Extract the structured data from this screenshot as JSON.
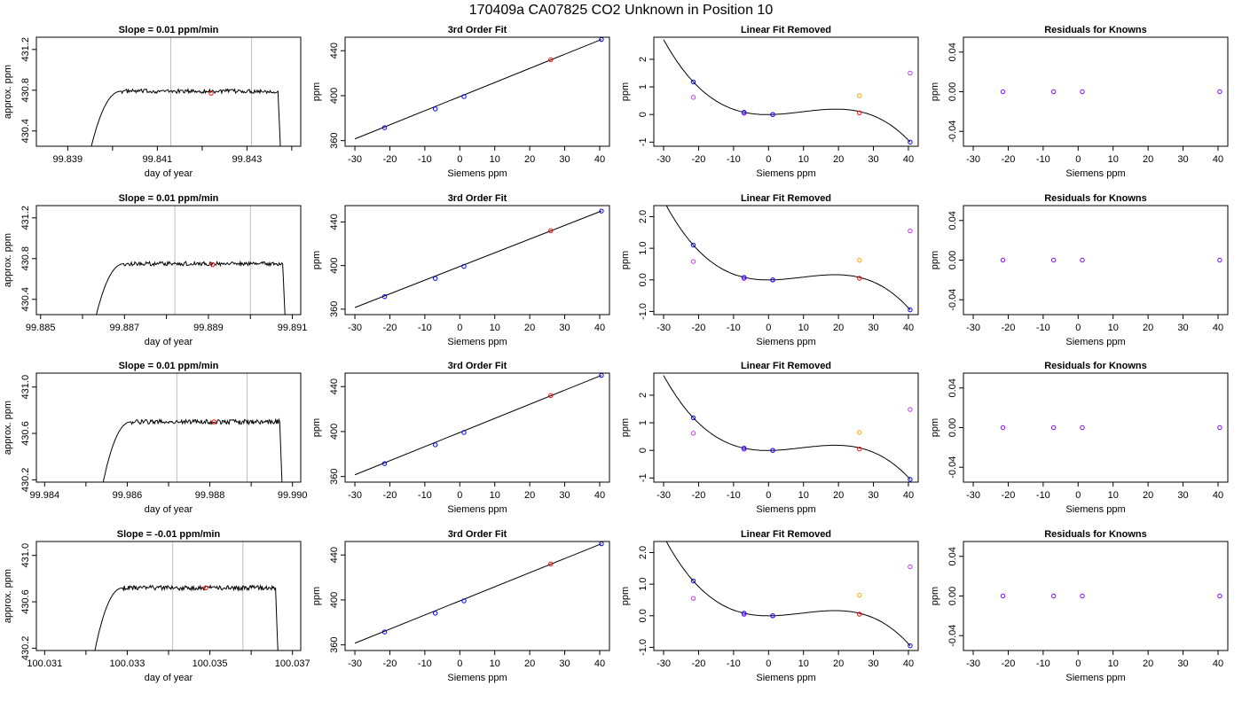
{
  "figure": {
    "title": "170409a      CA07825    CO2 Unknown in Position  10"
  },
  "colors": {
    "raw_trace": "#000000",
    "window_lines": "#bebebe",
    "known_points": "#0000ff",
    "unknown_point": "#ff0000",
    "linear_removed_alt1": "#cc33ff",
    "linear_removed_alt2": "#ffa500",
    "residual_points": "#7f00ff"
  },
  "chart_data": [
    {
      "type": "line",
      "row": 1,
      "col": 1,
      "title": "Slope =  0.01  ppm/min",
      "xlabel": "day of year",
      "ylabel": "approx. ppm",
      "xlim": [
        99.8383,
        99.8442
      ],
      "ylim": [
        430.25,
        431.32
      ],
      "x_ticks": [
        "99.839",
        "99.841",
        "99.843"
      ],
      "x_tick_values": [
        99.839,
        99.841,
        99.843
      ],
      "y_ticks": [
        "430.4",
        "430.8",
        "431.2"
      ],
      "y_tick_values": [
        430.4,
        430.8,
        431.2
      ],
      "window_lines": [
        99.8413,
        99.8431
      ],
      "trace": {
        "start": 99.8395,
        "rise_end": 99.8402,
        "end": 99.84375,
        "low": 430.2,
        "plateau": 430.79,
        "noise": 0.02
      },
      "unknown_mean": {
        "x": 99.8422,
        "y": 430.77
      }
    },
    {
      "type": "scatter",
      "row": 1,
      "col": 2,
      "title": "3rd Order Fit",
      "xlabel": "Siemens ppm",
      "ylabel": "ppm",
      "xlim": [
        -32.8,
        42.8
      ],
      "ylim": [
        355,
        452
      ],
      "x_ticks": [
        "-30",
        "-20",
        "-10",
        "0",
        "10",
        "20",
        "30",
        "40"
      ],
      "x_tick_values": [
        -30,
        -20,
        -10,
        0,
        10,
        20,
        30,
        40
      ],
      "y_ticks": [
        "360",
        "400",
        "440"
      ],
      "y_tick_values": [
        360,
        400,
        440
      ],
      "fit_line": {
        "x0": -30,
        "y0": 361.5,
        "x1": 40.5,
        "y1": 450
      },
      "known_points": {
        "x": [
          -21.5,
          -7.0,
          1.2,
          40.5
        ],
        "y": [
          371.5,
          388.2,
          399.2,
          450.0
        ]
      },
      "unknown_point": {
        "x": 26,
        "y": 432
      }
    },
    {
      "type": "scatter",
      "row": 1,
      "col": 3,
      "title": "Linear Fit Removed",
      "xlabel": "Siemens ppm",
      "ylabel": "ppm",
      "xlim": [
        -32.8,
        42.8
      ],
      "ylim": [
        -1.15,
        2.8
      ],
      "x_ticks": [
        "-30",
        "-20",
        "-10",
        "0",
        "10",
        "20",
        "30",
        "40"
      ],
      "x_tick_values": [
        -30,
        -20,
        -10,
        0,
        10,
        20,
        30,
        40
      ],
      "y_ticks": [
        "-1",
        "0",
        "1",
        "2"
      ],
      "y_tick_values": [
        -1,
        0,
        1,
        2
      ],
      "curve_anchor": {
        "x": [
          -21.5,
          -7.0,
          1.2,
          40.5
        ],
        "y": [
          1.18,
          0.08,
          0.0,
          -1.0
        ]
      },
      "known_points": {
        "x": [
          -21.5,
          -7.0,
          1.2,
          40.5
        ],
        "y": [
          1.18,
          0.08,
          0.0,
          -1.0
        ]
      },
      "alt_points_1": {
        "x": [
          -21.5,
          -7.0,
          1.2,
          40.5
        ],
        "y": [
          0.62,
          0.04,
          0.0,
          1.5
        ]
      },
      "alt_points_2": {
        "x": [
          26
        ],
        "y": [
          0.68
        ]
      },
      "unknown_point": {
        "x": 26,
        "y": 0.06
      }
    },
    {
      "type": "scatter",
      "row": 1,
      "col": 4,
      "title": "Residuals for Knowns",
      "xlabel": "Siemens ppm",
      "ylabel": "ppm",
      "xlim": [
        -32.8,
        42.8
      ],
      "ylim": [
        -0.055,
        0.055
      ],
      "x_ticks": [
        "-30",
        "-20",
        "-10",
        "0",
        "10",
        "20",
        "30",
        "40"
      ],
      "x_tick_values": [
        -30,
        -20,
        -10,
        0,
        10,
        20,
        30,
        40
      ],
      "y_ticks": [
        "-0.04",
        "0.00",
        "0.04"
      ],
      "y_tick_values": [
        -0.04,
        0,
        0.04
      ],
      "points": {
        "x": [
          -21.5,
          -7.0,
          1.2,
          40.5
        ],
        "y": [
          0,
          0,
          0,
          0
        ]
      }
    },
    {
      "type": "line",
      "row": 2,
      "col": 1,
      "title": "Slope =  0.01  ppm/min",
      "xlabel": "day of year",
      "ylabel": "approx. ppm",
      "xlim": [
        99.8849,
        99.8912
      ],
      "ylim": [
        430.25,
        431.32
      ],
      "x_ticks": [
        "99.885",
        "99.887",
        "99.889",
        "99.891"
      ],
      "x_tick_values": [
        99.885,
        99.887,
        99.889,
        99.891
      ],
      "y_ticks": [
        "430.4",
        "430.8",
        "431.2"
      ],
      "y_tick_values": [
        430.4,
        430.8,
        431.2
      ],
      "window_lines": [
        99.8882,
        99.89
      ],
      "trace": {
        "start": 99.8863,
        "rise_end": 99.887,
        "end": 99.89083,
        "low": 430.2,
        "plateau": 430.75,
        "noise": 0.02
      },
      "unknown_mean": {
        "x": 99.8891,
        "y": 430.74
      }
    },
    {
      "type": "scatter",
      "row": 2,
      "col": 2,
      "title": "3rd Order Fit",
      "xlabel": "Siemens ppm",
      "ylabel": "ppm",
      "xlim": [
        -32.8,
        42.8
      ],
      "ylim": [
        355,
        455
      ],
      "x_ticks": [
        "-30",
        "-20",
        "-10",
        "0",
        "10",
        "20",
        "30",
        "40"
      ],
      "x_tick_values": [
        -30,
        -20,
        -10,
        0,
        10,
        20,
        30,
        40
      ],
      "y_ticks": [
        "360",
        "400",
        "440"
      ],
      "y_tick_values": [
        360,
        400,
        440
      ],
      "fit_line": {
        "x0": -30,
        "y0": 361.5,
        "x1": 40.5,
        "y1": 450
      },
      "known_points": {
        "x": [
          -21.5,
          -7.0,
          1.2,
          40.5
        ],
        "y": [
          371.5,
          388.2,
          399.2,
          450.0
        ]
      },
      "unknown_point": {
        "x": 26,
        "y": 432
      }
    },
    {
      "type": "scatter",
      "row": 2,
      "col": 3,
      "title": "Linear Fit Removed",
      "xlabel": "Siemens ppm",
      "ylabel": "ppm",
      "xlim": [
        -32.8,
        42.8
      ],
      "ylim": [
        -1.1,
        2.35
      ],
      "x_ticks": [
        "-30",
        "-20",
        "-10",
        "0",
        "10",
        "20",
        "30",
        "40"
      ],
      "x_tick_values": [
        -30,
        -20,
        -10,
        0,
        10,
        20,
        30,
        40
      ],
      "y_ticks": [
        "-1.0",
        "0.0",
        "1.0",
        "2.0"
      ],
      "y_tick_values": [
        -1,
        0,
        1,
        2
      ],
      "curve_anchor": {
        "x": [
          -21.5,
          -7.0,
          1.2,
          40.5
        ],
        "y": [
          1.1,
          0.08,
          0.0,
          -0.95
        ]
      },
      "known_points": {
        "x": [
          -21.5,
          -7.0,
          1.2,
          40.5
        ],
        "y": [
          1.1,
          0.08,
          0.0,
          -0.95
        ]
      },
      "alt_points_1": {
        "x": [
          -21.5,
          -7.0,
          1.2,
          40.5
        ],
        "y": [
          0.58,
          0.04,
          0.0,
          1.55
        ]
      },
      "alt_points_2": {
        "x": [
          26
        ],
        "y": [
          0.62
        ]
      },
      "unknown_point": {
        "x": 26,
        "y": 0.05
      }
    },
    {
      "type": "scatter",
      "row": 2,
      "col": 4,
      "title": "Residuals for Knowns",
      "xlabel": "Siemens ppm",
      "ylabel": "ppm",
      "xlim": [
        -32.8,
        42.8
      ],
      "ylim": [
        -0.055,
        0.055
      ],
      "x_ticks": [
        "-30",
        "-20",
        "-10",
        "0",
        "10",
        "20",
        "30",
        "40"
      ],
      "x_tick_values": [
        -30,
        -20,
        -10,
        0,
        10,
        20,
        30,
        40
      ],
      "y_ticks": [
        "-0.04",
        "0.00",
        "0.04"
      ],
      "y_tick_values": [
        -0.04,
        0,
        0.04
      ],
      "points": {
        "x": [
          -21.5,
          -7.0,
          1.2,
          40.5
        ],
        "y": [
          0,
          0,
          0,
          0
        ]
      }
    },
    {
      "type": "line",
      "row": 3,
      "col": 1,
      "title": "Slope =  0.01  ppm/min",
      "xlabel": "day of year",
      "ylabel": "approx. ppm",
      "xlim": [
        99.9838,
        99.9902
      ],
      "ylim": [
        430.18,
        431.12
      ],
      "x_ticks": [
        "99.984",
        "99.986",
        "99.988",
        "99.990"
      ],
      "x_tick_values": [
        99.984,
        99.986,
        99.988,
        99.99
      ],
      "y_ticks": [
        "430.2",
        "430.6",
        "431.0"
      ],
      "y_tick_values": [
        430.2,
        430.6,
        431.0
      ],
      "window_lines": [
        99.9872,
        99.9889
      ],
      "trace": {
        "start": 99.9854,
        "rise_end": 99.9861,
        "end": 99.98975,
        "low": 430.15,
        "plateau": 430.7,
        "noise": 0.02
      },
      "unknown_mean": {
        "x": 99.9881,
        "y": 430.7
      }
    },
    {
      "type": "scatter",
      "row": 3,
      "col": 2,
      "title": "3rd Order Fit",
      "xlabel": "Siemens ppm",
      "ylabel": "ppm",
      "xlim": [
        -32.8,
        42.8
      ],
      "ylim": [
        355,
        452
      ],
      "x_ticks": [
        "-30",
        "-20",
        "-10",
        "0",
        "10",
        "20",
        "30",
        "40"
      ],
      "x_tick_values": [
        -30,
        -20,
        -10,
        0,
        10,
        20,
        30,
        40
      ],
      "y_ticks": [
        "360",
        "400",
        "440"
      ],
      "y_tick_values": [
        360,
        400,
        440
      ],
      "fit_line": {
        "x0": -30,
        "y0": 361.5,
        "x1": 40.5,
        "y1": 450
      },
      "known_points": {
        "x": [
          -21.5,
          -7.0,
          1.2,
          40.5
        ],
        "y": [
          371.5,
          388.2,
          399.2,
          450.0
        ]
      },
      "unknown_point": {
        "x": 26,
        "y": 432
      }
    },
    {
      "type": "scatter",
      "row": 3,
      "col": 3,
      "title": "Linear Fit Removed",
      "xlabel": "Siemens ppm",
      "ylabel": "ppm",
      "xlim": [
        -32.8,
        42.8
      ],
      "ylim": [
        -1.15,
        2.8
      ],
      "x_ticks": [
        "-30",
        "-20",
        "-10",
        "0",
        "10",
        "20",
        "30",
        "40"
      ],
      "x_tick_values": [
        -30,
        -20,
        -10,
        0,
        10,
        20,
        30,
        40
      ],
      "y_ticks": [
        "-1",
        "0",
        "1",
        "2"
      ],
      "y_tick_values": [
        -1,
        0,
        1,
        2
      ],
      "curve_anchor": {
        "x": [
          -21.5,
          -7.0,
          1.2,
          40.5
        ],
        "y": [
          1.18,
          0.08,
          0.0,
          -1.05
        ]
      },
      "known_points": {
        "x": [
          -21.5,
          -7.0,
          1.2,
          40.5
        ],
        "y": [
          1.18,
          0.08,
          0.0,
          -1.05
        ]
      },
      "alt_points_1": {
        "x": [
          -21.5,
          -7.0,
          1.2,
          40.5
        ],
        "y": [
          0.62,
          0.04,
          0.0,
          1.48
        ]
      },
      "alt_points_2": {
        "x": [
          26
        ],
        "y": [
          0.65
        ]
      },
      "unknown_point": {
        "x": 26,
        "y": 0.05
      }
    },
    {
      "type": "scatter",
      "row": 3,
      "col": 4,
      "title": "Residuals for Knowns",
      "xlabel": "Siemens ppm",
      "ylabel": "ppm",
      "xlim": [
        -32.8,
        42.8
      ],
      "ylim": [
        -0.055,
        0.055
      ],
      "x_ticks": [
        "-30",
        "-20",
        "-10",
        "0",
        "10",
        "20",
        "30",
        "40"
      ],
      "x_tick_values": [
        -30,
        -20,
        -10,
        0,
        10,
        20,
        30,
        40
      ],
      "y_ticks": [
        "-0.04",
        "0.00",
        "0.04"
      ],
      "y_tick_values": [
        -0.04,
        0,
        0.04
      ],
      "points": {
        "x": [
          -21.5,
          -7.0,
          1.2,
          40.5
        ],
        "y": [
          0,
          0,
          0,
          0
        ]
      }
    },
    {
      "type": "line",
      "row": 4,
      "col": 1,
      "title": "Slope =  -0.01  ppm/min",
      "xlabel": "day of year",
      "ylabel": "approx. ppm",
      "xlim": [
        100.0308,
        100.0372
      ],
      "ylim": [
        430.18,
        431.12
      ],
      "x_ticks": [
        "100.031",
        "100.033",
        "100.035",
        "100.037"
      ],
      "x_tick_values": [
        100.031,
        100.033,
        100.035,
        100.037
      ],
      "y_ticks": [
        "430.2",
        "430.6",
        "431.0"
      ],
      "y_tick_values": [
        430.2,
        430.6,
        431.0
      ],
      "window_lines": [
        100.0341,
        100.0358
      ],
      "trace": {
        "start": 100.0322,
        "rise_end": 100.0329,
        "end": 100.03665,
        "low": 430.15,
        "plateau": 430.72,
        "noise": 0.02
      },
      "unknown_mean": {
        "x": 100.0349,
        "y": 430.72
      }
    },
    {
      "type": "scatter",
      "row": 4,
      "col": 2,
      "title": "3rd Order Fit",
      "xlabel": "Siemens ppm",
      "ylabel": "ppm",
      "xlim": [
        -32.8,
        42.8
      ],
      "ylim": [
        355,
        452
      ],
      "x_ticks": [
        "-30",
        "-20",
        "-10",
        "0",
        "10",
        "20",
        "30",
        "40"
      ],
      "x_tick_values": [
        -30,
        -20,
        -10,
        0,
        10,
        20,
        30,
        40
      ],
      "y_ticks": [
        "360",
        "400",
        "440"
      ],
      "y_tick_values": [
        360,
        400,
        440
      ],
      "fit_line": {
        "x0": -30,
        "y0": 361.5,
        "x1": 40.5,
        "y1": 450
      },
      "known_points": {
        "x": [
          -21.5,
          -7.0,
          1.2,
          40.5
        ],
        "y": [
          371.5,
          388.2,
          399.2,
          450.0
        ]
      },
      "unknown_point": {
        "x": 26,
        "y": 432
      }
    },
    {
      "type": "scatter",
      "row": 4,
      "col": 3,
      "title": "Linear Fit Removed",
      "xlabel": "Siemens ppm",
      "ylabel": "ppm",
      "xlim": [
        -32.8,
        42.8
      ],
      "ylim": [
        -1.1,
        2.35
      ],
      "x_ticks": [
        "-30",
        "-20",
        "-10",
        "0",
        "10",
        "20",
        "30",
        "40"
      ],
      "x_tick_values": [
        -30,
        -20,
        -10,
        0,
        10,
        20,
        30,
        40
      ],
      "y_ticks": [
        "-1.0",
        "0.0",
        "1.0",
        "2.0"
      ],
      "y_tick_values": [
        -1,
        0,
        1,
        2
      ],
      "curve_anchor": {
        "x": [
          -21.5,
          -7.0,
          1.2,
          40.5
        ],
        "y": [
          1.1,
          0.08,
          0.0,
          -0.95
        ]
      },
      "known_points": {
        "x": [
          -21.5,
          -7.0,
          1.2,
          40.5
        ],
        "y": [
          1.1,
          0.08,
          0.0,
          -0.95
        ]
      },
      "alt_points_1": {
        "x": [
          -21.5,
          -7.0,
          1.2,
          40.5
        ],
        "y": [
          0.55,
          0.04,
          0.0,
          1.55
        ]
      },
      "alt_points_2": {
        "x": [
          26
        ],
        "y": [
          0.65
        ]
      },
      "unknown_point": {
        "x": 26,
        "y": 0.05
      }
    },
    {
      "type": "scatter",
      "row": 4,
      "col": 4,
      "title": "Residuals for Knowns",
      "xlabel": "Siemens ppm",
      "ylabel": "ppm",
      "xlim": [
        -32.8,
        42.8
      ],
      "ylim": [
        -0.055,
        0.055
      ],
      "x_ticks": [
        "-30",
        "-20",
        "-10",
        "0",
        "10",
        "20",
        "30",
        "40"
      ],
      "x_tick_values": [
        -30,
        -20,
        -10,
        0,
        10,
        20,
        30,
        40
      ],
      "y_ticks": [
        "-0.04",
        "0.00",
        "0.04"
      ],
      "y_tick_values": [
        -0.04,
        0,
        0.04
      ],
      "points": {
        "x": [
          -21.5,
          -7.0,
          1.2,
          40.5
        ],
        "y": [
          0,
          0,
          0,
          0
        ]
      }
    }
  ]
}
